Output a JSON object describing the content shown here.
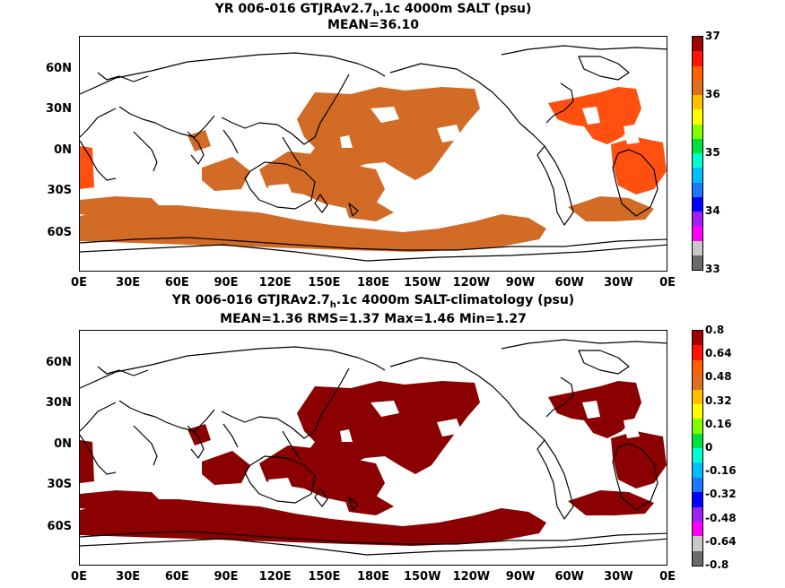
{
  "panel1": {
    "title_pre": "YR 006-016 GTJRAv2.7",
    "title_sub": "h",
    "title_post": ".1c 4000m SALT (psu)",
    "stats": "MEAN=36.10",
    "colorbar_labels": [
      "37",
      "36",
      "35",
      "34",
      "33"
    ],
    "fill_color": "#d26b26",
    "hot_color": "#ff5010"
  },
  "panel2": {
    "title_pre": "YR 006-016 GTJRAv2.7",
    "title_sub": "h",
    "title_post": ".1c 4000m SALT-climatology (psu)",
    "stats": "MEAN=1.36   RMS=1.37   Max=1.46   Min=1.27",
    "colorbar_labels": [
      "0.8",
      "0.64",
      "0.48",
      "0.32",
      "0.16",
      "0",
      "-0.16",
      "-0.32",
      "-0.48",
      "-0.64",
      "-0.8"
    ],
    "fill_color": "#8b0000"
  },
  "lat_labels": [
    "60N",
    "30N",
    "0N",
    "30S",
    "60S"
  ],
  "lon_labels": [
    "0E",
    "30E",
    "60E",
    "90E",
    "120E",
    "150E",
    "180E",
    "150W",
    "120W",
    "90W",
    "60W",
    "30W",
    "0E"
  ],
  "colorbar_colors": [
    "#6b6b6b",
    "#c8c8c8",
    "#ff00ff",
    "#a020f0",
    "#0000ff",
    "#1e78ff",
    "#00bfff",
    "#00ffd0",
    "#00e040",
    "#7fff00",
    "#ffff00",
    "#ffc000",
    "#e07020",
    "#ff6000",
    "#ff1400",
    "#a00000"
  ]
}
